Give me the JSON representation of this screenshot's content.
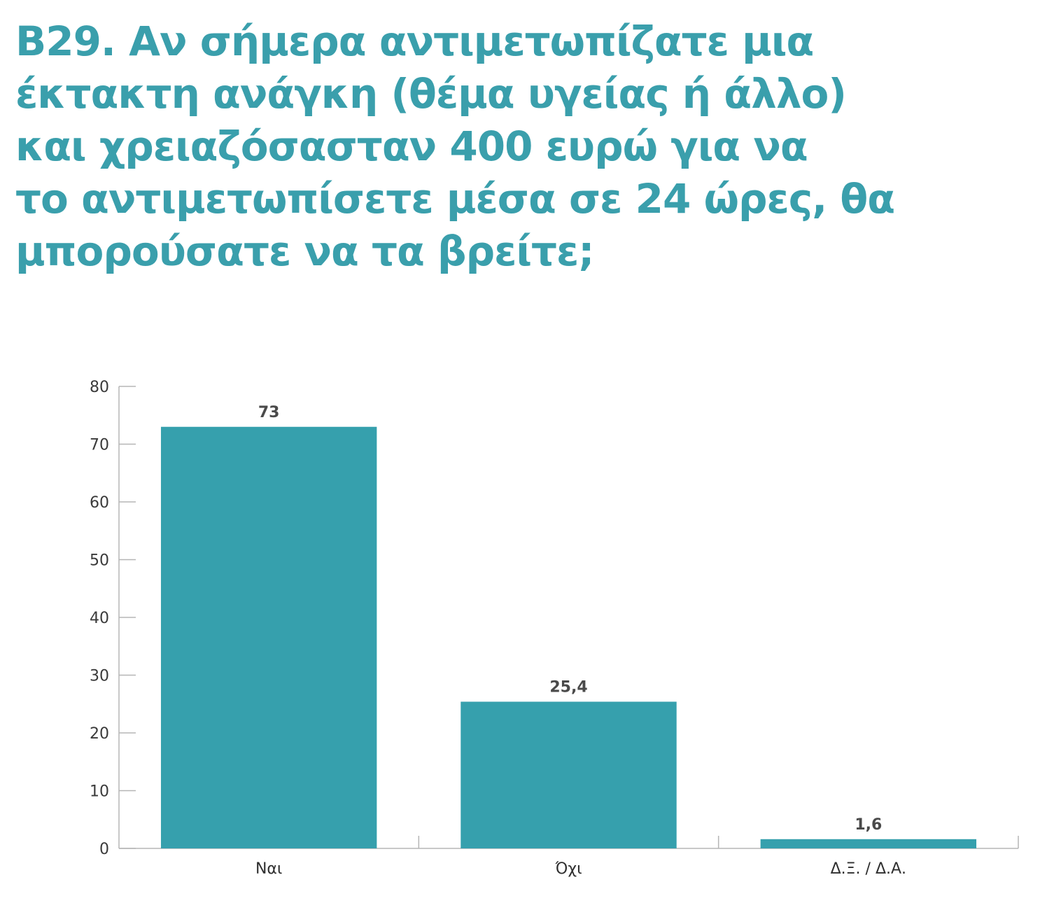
{
  "chart_data": {
    "type": "bar",
    "title_lines": [
      "B29. Αν σήμερα αντιμετωπίζατε μια",
      "έκτακτη ανάγκη (θέμα υγείας ή άλλο)",
      "και χρειαζόσασταν 400 ευρώ για να",
      "το αντιμετωπίσετε μέσα σε 24 ώρες, θα",
      "μπορούσατε να τα βρείτε;"
    ],
    "categories": [
      "Ναι",
      "Όχι",
      "Δ.Ξ. / Δ.Α."
    ],
    "values": [
      73,
      25.4,
      1.6
    ],
    "data_labels": [
      "73",
      "25,4",
      "1,6"
    ],
    "xlabel": "",
    "ylabel": "",
    "ylim": [
      0,
      80
    ],
    "yticks": [
      0,
      10,
      20,
      30,
      40,
      50,
      60,
      70,
      80
    ],
    "grid": false,
    "legend": "none",
    "bar_color": "#36a0ad",
    "title_color": "#3a9fac"
  }
}
